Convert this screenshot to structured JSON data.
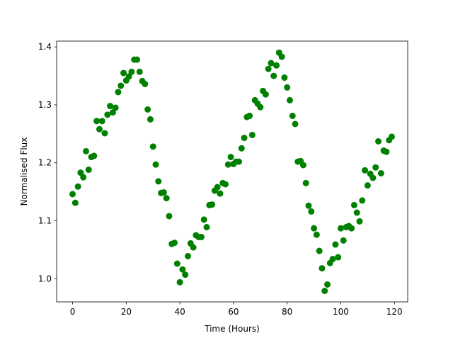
{
  "chart_data": {
    "type": "scatter",
    "xlabel": "Time (Hours)",
    "ylabel": "Normalised Flux",
    "series": [
      {
        "color": "#008000",
        "x": [
          0,
          1,
          2,
          3,
          4,
          5,
          6,
          7,
          8,
          9,
          10,
          11,
          12,
          13,
          14,
          15,
          16,
          17,
          18,
          19,
          20,
          21,
          22,
          23,
          24,
          25,
          26,
          27,
          28,
          29,
          30,
          31,
          32,
          33,
          34,
          35,
          36,
          37,
          38,
          39,
          40,
          41,
          42,
          43,
          44,
          45,
          46,
          47,
          48,
          49,
          50,
          51,
          52,
          53,
          54,
          55,
          56,
          57,
          58,
          59,
          60,
          61,
          62,
          63,
          64,
          65,
          66,
          67,
          68,
          69,
          70,
          71,
          72,
          73,
          74,
          75,
          76,
          77,
          78,
          79,
          80,
          81,
          82,
          83,
          84,
          85,
          86,
          87,
          88,
          89,
          90,
          91,
          92,
          93,
          94,
          95,
          96,
          97,
          98,
          99,
          100,
          101,
          102,
          103,
          104,
          105,
          106,
          107,
          108,
          109,
          110,
          111,
          112,
          113,
          114,
          115,
          116,
          117,
          118,
          119
        ],
        "values": [
          1.146,
          1.131,
          1.159,
          1.183,
          1.175,
          1.22,
          1.188,
          1.21,
          1.212,
          1.272,
          1.258,
          1.272,
          1.251,
          1.283,
          1.298,
          1.287,
          1.295,
          1.322,
          1.333,
          1.355,
          1.342,
          1.349,
          1.357,
          1.378,
          1.378,
          1.357,
          1.341,
          1.336,
          1.292,
          1.275,
          1.228,
          1.197,
          1.168,
          1.148,
          1.149,
          1.139,
          1.108,
          1.06,
          1.062,
          1.026,
          0.994,
          1.016,
          1.007,
          1.039,
          1.061,
          1.054,
          1.075,
          1.072,
          1.072,
          1.102,
          1.089,
          1.127,
          1.128,
          1.152,
          1.158,
          1.147,
          1.165,
          1.163,
          1.197,
          1.21,
          1.198,
          1.202,
          1.202,
          1.225,
          1.243,
          1.279,
          1.281,
          1.248,
          1.308,
          1.302,
          1.296,
          1.324,
          1.318,
          1.362,
          1.372,
          1.35,
          1.368,
          1.39,
          1.383,
          1.347,
          1.33,
          1.308,
          1.281,
          1.267,
          1.202,
          1.203,
          1.196,
          1.165,
          1.126,
          1.116,
          1.087,
          1.076,
          1.048,
          1.018,
          0.979,
          0.99,
          1.027,
          1.034,
          1.059,
          1.037,
          1.087,
          1.066,
          1.089,
          1.091,
          1.087,
          1.127,
          1.114,
          1.099,
          1.135,
          1.187,
          1.161,
          1.181,
          1.174,
          1.192,
          1.237,
          1.182,
          1.221,
          1.219,
          1.239,
          1.245
        ]
      }
    ],
    "xlim": [
      -5.95,
      124.95
    ],
    "xticks": [
      0,
      20,
      40,
      60,
      80,
      100,
      120
    ],
    "ylim": [
      0.96,
      1.41
    ],
    "yticks": [
      {
        "value": 1,
        "label": "1.0"
      },
      1.1,
      1.2,
      1.3,
      1.4
    ],
    "grid": false
  }
}
